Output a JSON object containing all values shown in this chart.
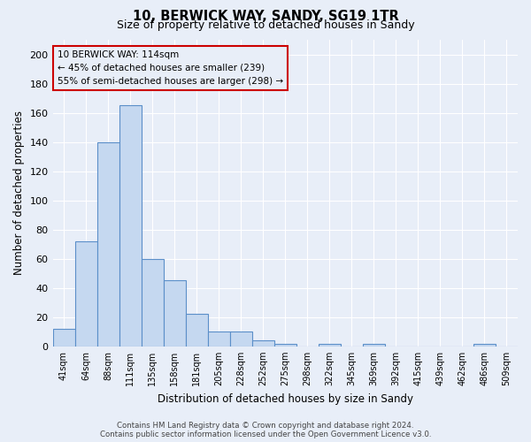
{
  "title": "10, BERWICK WAY, SANDY, SG19 1TR",
  "subtitle": "Size of property relative to detached houses in Sandy",
  "xlabel": "Distribution of detached houses by size in Sandy",
  "ylabel": "Number of detached properties",
  "bar_values": [
    12,
    72,
    140,
    165,
    60,
    45,
    22,
    10,
    10,
    4,
    2,
    0,
    2,
    0,
    2,
    0,
    0,
    0,
    0,
    2,
    0
  ],
  "x_labels": [
    "41sqm",
    "64sqm",
    "88sqm",
    "111sqm",
    "135sqm",
    "158sqm",
    "181sqm",
    "205sqm",
    "228sqm",
    "252sqm",
    "275sqm",
    "298sqm",
    "322sqm",
    "345sqm",
    "369sqm",
    "392sqm",
    "415sqm",
    "439sqm",
    "462sqm",
    "486sqm",
    "509sqm"
  ],
  "bar_color": "#c5d8f0",
  "bar_edge_color": "#5b8fc9",
  "bg_color": "#e8eef8",
  "grid_color": "#ffffff",
  "annotation_line1": "10 BERWICK WAY: 114sqm",
  "annotation_line2": "← 45% of detached houses are smaller (239)",
  "annotation_line3": "55% of semi-detached houses are larger (298) →",
  "annotation_box_color": "#cc0000",
  "footer_text": "Contains HM Land Registry data © Crown copyright and database right 2024.\nContains public sector information licensed under the Open Government Licence v3.0.",
  "ylim": [
    0,
    210
  ],
  "yticks": [
    0,
    20,
    40,
    60,
    80,
    100,
    120,
    140,
    160,
    180,
    200
  ]
}
